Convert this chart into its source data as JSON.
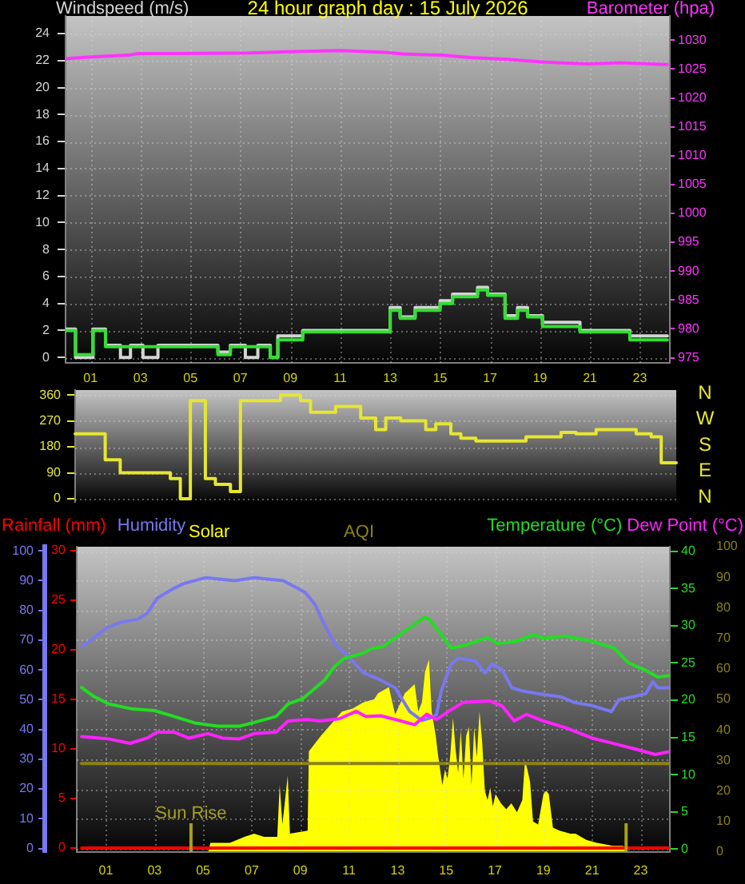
{
  "chart_data": [
    {
      "type": "line",
      "title": "24 hour graph day : 15 July 2026",
      "ylabel": "Windspeed (m/s)",
      "y2label": "Barometer (hpa)",
      "xlim": [
        0,
        24.2
      ],
      "xticks": [
        {
          "value": 1,
          "label": "01"
        },
        {
          "value": 3,
          "label": "03"
        },
        {
          "value": 5,
          "label": "05"
        },
        {
          "value": 7,
          "label": "07"
        },
        {
          "value": 9,
          "label": "09"
        },
        {
          "value": 11,
          "label": "11"
        },
        {
          "value": 13,
          "label": "13"
        },
        {
          "value": 15,
          "label": "15"
        },
        {
          "value": 17,
          "label": "17"
        },
        {
          "value": 19,
          "label": "19"
        },
        {
          "value": 21,
          "label": "21"
        },
        {
          "value": 23,
          "label": "23"
        }
      ],
      "ylim": [
        -0.4,
        25.3
      ],
      "yticks": [
        0,
        2,
        4,
        6,
        8,
        10,
        12,
        14,
        16,
        18,
        20,
        22,
        24
      ],
      "y2lim": [
        974.1,
        1034.2
      ],
      "y2ticks": [
        975,
        980,
        985,
        990,
        995,
        1000,
        1005,
        1010,
        1015,
        1020,
        1025,
        1030
      ],
      "grid": true,
      "series": [
        {
          "type": "step",
          "color": "#d4d4d4",
          "x": [
            0,
            0.4,
            1.1,
            1.6,
            2.2,
            2.6,
            3.1,
            3.7,
            6.1,
            6.6,
            7.2,
            7.7,
            8.2,
            8.5,
            9.5,
            13.0,
            13.4,
            14.0,
            15.0,
            15.5,
            16.5,
            16.9,
            17.6,
            18.1,
            18.5,
            19.1,
            20.6,
            22.6,
            24.1
          ],
          "values": [
            2.1,
            0,
            2.1,
            0.9,
            0,
            0.9,
            0,
            0.9,
            0.4,
            0.9,
            0,
            0.9,
            0,
            1.6,
            2.0,
            3.7,
            3.0,
            3.7,
            4.2,
            4.7,
            5.2,
            4.7,
            3.1,
            3.7,
            3.1,
            2.6,
            2.0,
            1.6,
            1.6
          ]
        },
        {
          "type": "step",
          "color": "#33dd33",
          "x": [
            0,
            0.4,
            1.1,
            1.6,
            6.1,
            6.6,
            8.2,
            8.5,
            9.5,
            13.0,
            13.4,
            14.0,
            15.0,
            15.5,
            16.5,
            16.9,
            17.6,
            18.1,
            18.5,
            19.1,
            20.6,
            22.6,
            24.1
          ],
          "values": [
            2.0,
            0.2,
            2.0,
            0.8,
            0.2,
            0.8,
            0,
            1.3,
            1.9,
            3.5,
            2.9,
            3.5,
            4.0,
            4.5,
            5.0,
            4.6,
            2.9,
            3.5,
            3.0,
            2.3,
            1.9,
            1.3,
            1.3
          ]
        },
        {
          "type": "line",
          "color": "#ff33ff",
          "axis": "y2",
          "x": [
            0,
            1.0,
            2.5,
            2.9,
            4.4,
            7.4,
            8.9,
            11.0,
            12.8,
            13.6,
            15.1,
            16.2,
            17.7,
            19.2,
            20.9,
            22.2,
            24.1
          ],
          "values": [
            1026.8,
            1027.1,
            1027.4,
            1027.7,
            1027.7,
            1027.8,
            1028.0,
            1028.2,
            1027.9,
            1027.6,
            1027.4,
            1027.0,
            1026.7,
            1026.2,
            1025.9,
            1026.1,
            1025.8
          ]
        }
      ]
    },
    {
      "type": "step",
      "categories": [
        null,
        null,
        null,
        null,
        null,
        null,
        null,
        null,
        null,
        null,
        null,
        null,
        null,
        null,
        null,
        null,
        null,
        null,
        null,
        null,
        null,
        null,
        null,
        null,
        null,
        null,
        null,
        null,
        null,
        null,
        null,
        null,
        null,
        null,
        null,
        null,
        null,
        null,
        null,
        null,
        null,
        null,
        null,
        null,
        null,
        null,
        null,
        null,
        null,
        null,
        null,
        null,
        null,
        null,
        null,
        null,
        null,
        null,
        null,
        null,
        null,
        null,
        null,
        null,
        null,
        null,
        null,
        null,
        null,
        null,
        null,
        null,
        null,
        null,
        null,
        null,
        null,
        null,
        null,
        null,
        null,
        null,
        null,
        null,
        null,
        null,
        null,
        null,
        null,
        null,
        null,
        null,
        null,
        null,
        null,
        null,
        null,
        null,
        null,
        null,
        null,
        null,
        null,
        null,
        null,
        null,
        null,
        null,
        null,
        null,
        null,
        null,
        null,
        null,
        null,
        null,
        null,
        null,
        null,
        null,
        null
      ],
      "ylim": [
        -11,
        377
      ],
      "yticks": [
        0,
        90,
        180,
        270,
        360
      ],
      "grid": "y",
      "tick_labels": "y",
      "annotations": [
        "N",
        "W",
        "S",
        "E",
        "N"
      ],
      "series": [
        {
          "color": "#e6e632",
          "values": [
            225,
            225,
            225,
            225,
            225,
            225,
            135,
            135,
            135,
            90,
            90,
            90,
            90,
            90,
            90,
            90,
            90,
            90,
            90,
            70,
            70,
            0,
            0,
            340,
            340,
            340,
            70,
            70,
            50,
            50,
            50,
            25,
            25,
            340,
            340,
            340,
            340,
            340,
            340,
            340,
            340,
            360,
            360,
            360,
            360,
            340,
            340,
            300,
            300,
            300,
            300,
            300,
            320,
            320,
            320,
            320,
            320,
            280,
            280,
            280,
            240,
            240,
            280,
            280,
            280,
            270,
            270,
            270,
            270,
            270,
            240,
            240,
            260,
            260,
            260,
            225,
            225,
            210,
            210,
            210,
            200,
            200,
            200,
            200,
            200,
            200,
            200,
            200,
            200,
            200,
            215,
            215,
            215,
            215,
            215,
            215,
            215,
            230,
            230,
            230,
            225,
            225,
            225,
            225,
            240,
            240,
            240,
            240,
            240,
            240,
            240,
            240,
            225,
            225,
            225,
            215,
            215,
            125,
            125,
            125,
            125
          ]
        }
      ]
    },
    {
      "type": "line",
      "legend": "top",
      "xlim": [
        -0.2,
        24.2
      ],
      "ylim": [
        0,
        100
      ],
      "yticks": [
        0,
        10,
        20,
        30,
        40,
        50,
        60,
        70,
        80,
        90,
        100
      ],
      "tick_labels": "y",
      "series": [
        {
          "name": "Solar",
          "type": "area",
          "color": "#ffff00",
          "x": [
            0,
            5.2,
            5.3,
            6.1,
            6.7,
            7.1,
            7.5,
            8.05,
            8.15,
            8.26,
            8.48,
            8.57,
            9.3,
            9.35,
            9.84,
            10.28,
            10.71,
            11.15,
            11.59,
            12.03,
            12.2,
            12.64,
            12.9,
            13.3,
            13.57,
            13.7,
            13.85,
            14.0,
            14.13,
            14.29,
            14.4,
            14.57,
            14.66,
            14.84,
            14.95,
            15.05,
            15.16,
            15.28,
            15.38,
            15.49,
            15.6,
            15.71,
            15.82,
            15.93,
            16.04,
            16.15,
            16.26,
            16.37,
            16.48,
            16.59,
            16.7,
            16.81,
            16.92,
            17.03,
            17.25,
            17.47,
            17.68,
            17.91,
            18.13,
            18.24,
            18.34,
            18.45,
            18.57,
            18.78,
            19.0,
            19.11,
            19.22,
            19.39,
            19.66,
            20.1,
            20.32,
            20.76,
            21.2,
            21.86,
            22.29,
            22.4,
            24.2
          ],
          "values": [
            0,
            0,
            3,
            3,
            5,
            6,
            5,
            5,
            22,
            9,
            25,
            6,
            7,
            33,
            38,
            42,
            46,
            47,
            49,
            50,
            52,
            54,
            45,
            52,
            54,
            55,
            46,
            49,
            59,
            63,
            46,
            38,
            32,
            22,
            27,
            24,
            31,
            44,
            34,
            26,
            40,
            24,
            38,
            41,
            22,
            41,
            31,
            46,
            36,
            20,
            17,
            21,
            15,
            19,
            16,
            14,
            16,
            13,
            17,
            30,
            27,
            23,
            10,
            9,
            19,
            20,
            19,
            8,
            7,
            6,
            6,
            4,
            3,
            2,
            2,
            0,
            0
          ]
        },
        {
          "name": "AQI",
          "color": "#8c8214",
          "x": [
            0,
            24.2
          ],
          "values": [
            29,
            29
          ]
        }
      ]
    },
    {
      "type": "line",
      "legend": "top",
      "xlim": [
        -0.2,
        24.2
      ],
      "xticks": [
        {
          "value": 1,
          "label": "01"
        },
        {
          "value": 3,
          "label": "03"
        },
        {
          "value": 5,
          "label": "05"
        },
        {
          "value": 7,
          "label": "07"
        },
        {
          "value": 9,
          "label": "09"
        },
        {
          "value": 11,
          "label": "11"
        },
        {
          "value": 13,
          "label": "13"
        },
        {
          "value": 15,
          "label": "15"
        },
        {
          "value": 17,
          "label": "17"
        },
        {
          "value": 19,
          "label": "19"
        },
        {
          "value": 21,
          "label": "21"
        },
        {
          "value": 23,
          "label": "23"
        }
      ],
      "ylim": [
        -1.2,
        101.4
      ],
      "yticks": [
        0,
        10,
        20,
        30,
        40,
        50,
        60,
        70,
        80,
        90,
        100
      ],
      "y2lim": [
        -0.4,
        30.4
      ],
      "y2ticks": [
        0,
        5,
        10,
        15,
        20,
        25,
        30
      ],
      "y3lim": [
        -0.4,
        40.6
      ],
      "y3ticks": [
        0,
        5,
        10,
        15,
        20,
        25,
        30,
        35,
        40
      ],
      "grid": true,
      "ref_lines": [
        {
          "axis": "x",
          "value": 4.5,
          "label": "Sun Rise",
          "color": "#a8a020"
        },
        {
          "axis": "x",
          "value": 22.4,
          "color": "#a8a020"
        }
      ],
      "series": [
        {
          "name": "Rainfall (mm)",
          "color": "#ff0000",
          "axis": "y2",
          "x": [
            0,
            24.2
          ],
          "values": [
            0,
            0
          ]
        },
        {
          "name": "Humidity",
          "color": "#7878f0",
          "x": [
            0,
            0.4,
            1.0,
            1.6,
            2.3,
            2.7,
            3.1,
            3.7,
            4.2,
            5.1,
            6.3,
            7.1,
            8.3,
            9.2,
            9.6,
            10.0,
            10.4,
            10.9,
            11.6,
            12.2,
            12.9,
            13.5,
            14.0,
            14.4,
            14.6,
            14.8,
            15.2,
            15.5,
            16.2,
            16.6,
            16.9,
            17.3,
            17.7,
            18.1,
            18.8,
            19.7,
            20.3,
            21.0,
            21.8,
            22.1,
            22.7,
            23.2,
            23.5,
            23.7,
            24.2
          ],
          "values": [
            68,
            70,
            74,
            76,
            77,
            79,
            84,
            87,
            89,
            91,
            90,
            91,
            90,
            86,
            82,
            75,
            69,
            65,
            59,
            57,
            54,
            46,
            43,
            44,
            45,
            53,
            62,
            64,
            63,
            59,
            62,
            60,
            54,
            53,
            52,
            51,
            49,
            48,
            46,
            50,
            51,
            52,
            56,
            54,
            54
          ]
        },
        {
          "name": "Temperature (°C)",
          "color": "#22dd22",
          "axis": "y3",
          "x": [
            0,
            0.5,
            1.1,
            2.1,
            3.0,
            3.8,
            4.7,
            5.6,
            6.5,
            7.1,
            8.0,
            8.5,
            9.1,
            9.5,
            10.0,
            10.4,
            10.8,
            11.5,
            11.9,
            12.4,
            13.1,
            13.7,
            14.1,
            14.3,
            14.7,
            15.2,
            15.8,
            16.7,
            17.1,
            17.9,
            18.6,
            19.0,
            19.9,
            21.0,
            21.9,
            22.5,
            23.2,
            23.7,
            24.2
          ],
          "values": [
            21.7,
            20.5,
            19.5,
            18.8,
            18.6,
            17.8,
            16.9,
            16.5,
            16.5,
            17.0,
            17.8,
            19.5,
            20.2,
            21.3,
            22.7,
            24.5,
            25.6,
            26.2,
            26.9,
            27.2,
            28.8,
            30.2,
            31.1,
            30.9,
            29.2,
            27.0,
            27.4,
            28.4,
            27.6,
            27.9,
            28.8,
            28.3,
            28.6,
            27.9,
            27.0,
            25.0,
            24.0,
            23.1,
            23.3
          ]
        },
        {
          "name": "Dew Point (°C)",
          "color": "#ff22ff",
          "axis": "y3",
          "x": [
            0,
            1.1,
            2.0,
            2.7,
            3.1,
            3.8,
            4.4,
            5.2,
            5.8,
            6.5,
            7.1,
            8.0,
            8.5,
            9.3,
            9.8,
            10.6,
            11.3,
            11.7,
            12.3,
            12.9,
            13.7,
            14.2,
            14.6,
            15.1,
            15.7,
            16.8,
            17.3,
            17.8,
            18.3,
            19.0,
            19.9,
            21.0,
            22.1,
            22.7,
            23.6,
            24.2
          ],
          "values": [
            15.1,
            14.8,
            14.2,
            14.9,
            15.7,
            15.7,
            14.9,
            15.5,
            14.9,
            14.8,
            15.5,
            15.7,
            17.2,
            17.4,
            17.2,
            17.5,
            18.5,
            17.8,
            17.9,
            17.4,
            16.7,
            18.1,
            17.4,
            18.5,
            19.7,
            19.9,
            19.2,
            17.2,
            18.1,
            17.2,
            16.3,
            14.9,
            14.0,
            13.5,
            12.7,
            13.1
          ]
        }
      ]
    }
  ]
}
